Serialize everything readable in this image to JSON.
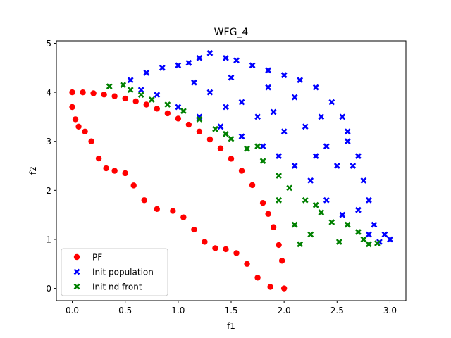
{
  "chart_data": {
    "type": "scatter",
    "title": "WFG_4",
    "xlabel": "f1",
    "ylabel": "f2",
    "xlim": [
      -0.15,
      3.15
    ],
    "ylim": [
      -0.25,
      5.05
    ],
    "xticks": [
      0.0,
      0.5,
      1.0,
      1.5,
      2.0,
      2.5,
      3.0
    ],
    "xtick_labels": [
      "0.0",
      "0.5",
      "1.0",
      "1.5",
      "2.0",
      "2.5",
      "3.0"
    ],
    "yticks": [
      0,
      1,
      2,
      3,
      4,
      5
    ],
    "ytick_labels": [
      "0",
      "1",
      "2",
      "3",
      "4",
      "5"
    ],
    "grid": false,
    "legend_position": "lower-left",
    "series": [
      {
        "name": "PF",
        "marker": "circle",
        "color": "#ff0000",
        "points": [
          [
            0.0,
            4.0
          ],
          [
            0.1,
            3.999
          ],
          [
            0.2,
            3.98
          ],
          [
            0.3,
            3.955
          ],
          [
            0.4,
            3.92
          ],
          [
            0.5,
            3.873
          ],
          [
            0.6,
            3.816
          ],
          [
            0.7,
            3.75
          ],
          [
            0.8,
            3.666
          ],
          [
            0.9,
            3.571
          ],
          [
            1.0,
            3.464
          ],
          [
            1.1,
            3.34
          ],
          [
            1.2,
            3.2
          ],
          [
            1.3,
            3.039
          ],
          [
            1.4,
            2.857
          ],
          [
            1.5,
            2.646
          ],
          [
            1.6,
            2.4
          ],
          [
            1.7,
            2.107
          ],
          [
            1.8,
            1.744
          ],
          [
            1.85,
            1.52
          ],
          [
            1.9,
            1.249
          ],
          [
            1.95,
            0.886
          ],
          [
            1.98,
            0.565
          ],
          [
            2.0,
            0.0
          ],
          [
            0.0,
            3.7
          ],
          [
            0.03,
            3.45
          ],
          [
            0.06,
            3.3
          ],
          [
            0.12,
            3.2
          ],
          [
            0.18,
            3.0
          ],
          [
            0.25,
            2.65
          ],
          [
            0.32,
            2.45
          ],
          [
            0.4,
            2.4
          ],
          [
            0.5,
            2.35
          ],
          [
            0.58,
            2.1
          ],
          [
            0.68,
            1.8
          ],
          [
            0.8,
            1.62
          ],
          [
            0.95,
            1.58
          ],
          [
            1.05,
            1.45
          ],
          [
            1.15,
            1.2
          ],
          [
            1.25,
            0.95
          ],
          [
            1.35,
            0.82
          ],
          [
            1.45,
            0.8
          ],
          [
            1.55,
            0.72
          ],
          [
            1.65,
            0.5
          ],
          [
            1.75,
            0.22
          ],
          [
            1.87,
            0.03
          ]
        ]
      },
      {
        "name": "Init population",
        "marker": "x",
        "color": "#0000ff",
        "points": [
          [
            0.55,
            4.25
          ],
          [
            0.7,
            4.4
          ],
          [
            0.85,
            4.5
          ],
          [
            1.0,
            4.55
          ],
          [
            1.1,
            4.6
          ],
          [
            1.2,
            4.7
          ],
          [
            1.3,
            4.8
          ],
          [
            1.45,
            4.7
          ],
          [
            1.55,
            4.65
          ],
          [
            1.7,
            4.55
          ],
          [
            1.85,
            4.45
          ],
          [
            2.0,
            4.35
          ],
          [
            2.15,
            4.25
          ],
          [
            2.3,
            4.1
          ],
          [
            2.45,
            3.8
          ],
          [
            2.55,
            3.5
          ],
          [
            2.6,
            3.2
          ],
          [
            2.6,
            3.0
          ],
          [
            2.7,
            2.7
          ],
          [
            2.65,
            2.5
          ],
          [
            2.75,
            2.2
          ],
          [
            2.8,
            1.8
          ],
          [
            2.7,
            1.6
          ],
          [
            2.85,
            1.3
          ],
          [
            2.95,
            1.1
          ],
          [
            3.0,
            1.0
          ],
          [
            2.9,
            0.95
          ],
          [
            2.8,
            1.1
          ],
          [
            2.55,
            1.5
          ],
          [
            2.4,
            1.8
          ],
          [
            2.25,
            2.2
          ],
          [
            2.1,
            2.5
          ],
          [
            1.95,
            2.7
          ],
          [
            1.8,
            2.9
          ],
          [
            1.6,
            3.1
          ],
          [
            1.4,
            3.3
          ],
          [
            1.2,
            3.5
          ],
          [
            1.0,
            3.7
          ],
          [
            0.8,
            3.95
          ],
          [
            0.65,
            4.05
          ],
          [
            1.3,
            4.0
          ],
          [
            1.6,
            3.8
          ],
          [
            1.9,
            3.6
          ],
          [
            2.2,
            3.3
          ],
          [
            2.4,
            2.9
          ],
          [
            1.15,
            4.2
          ],
          [
            1.5,
            4.3
          ],
          [
            1.85,
            4.1
          ],
          [
            2.1,
            3.9
          ],
          [
            2.35,
            3.5
          ],
          [
            2.0,
            3.2
          ],
          [
            1.75,
            3.5
          ],
          [
            1.45,
            3.7
          ],
          [
            2.5,
            2.5
          ],
          [
            2.3,
            2.7
          ]
        ]
      },
      {
        "name": "Init nd front",
        "marker": "x",
        "color": "#008000",
        "points": [
          [
            0.35,
            4.12
          ],
          [
            0.48,
            4.15
          ],
          [
            0.55,
            4.05
          ],
          [
            0.65,
            3.95
          ],
          [
            0.75,
            3.85
          ],
          [
            0.9,
            3.75
          ],
          [
            1.05,
            3.62
          ],
          [
            1.2,
            3.45
          ],
          [
            1.35,
            3.25
          ],
          [
            1.5,
            3.05
          ],
          [
            1.65,
            2.85
          ],
          [
            1.8,
            2.6
          ],
          [
            1.95,
            2.3
          ],
          [
            2.05,
            2.05
          ],
          [
            2.2,
            1.8
          ],
          [
            2.35,
            1.55
          ],
          [
            2.45,
            1.35
          ],
          [
            2.6,
            1.3
          ],
          [
            2.7,
            1.15
          ],
          [
            2.75,
            1.0
          ],
          [
            2.8,
            0.9
          ],
          [
            2.88,
            0.92
          ],
          [
            2.1,
            1.3
          ],
          [
            2.25,
            1.1
          ],
          [
            2.52,
            0.95
          ],
          [
            2.15,
            0.9
          ],
          [
            1.95,
            1.8
          ],
          [
            2.3,
            1.7
          ],
          [
            1.75,
            2.9
          ],
          [
            1.45,
            3.15
          ]
        ]
      }
    ]
  }
}
